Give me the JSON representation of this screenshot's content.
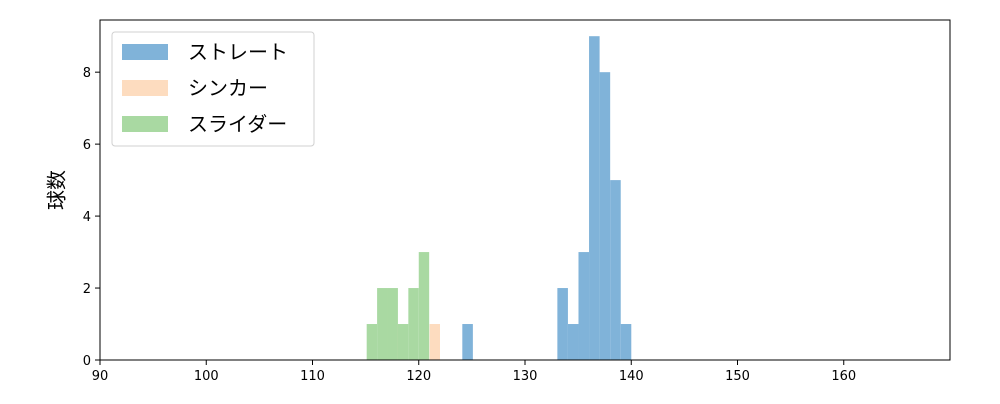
{
  "chart_data": {
    "type": "histogram",
    "y_label": "球数",
    "xlim": [
      90,
      170
    ],
    "xticks": [
      90,
      100,
      110,
      120,
      130,
      140,
      150,
      160
    ],
    "ylim": [
      0,
      9.45
    ],
    "yticks": [
      0,
      2,
      4,
      6,
      8
    ],
    "legend": "upper left",
    "series": [
      {
        "name": "ストレート",
        "color": "#80b3d9",
        "bins": [
          124.1,
          125.094,
          126.088,
          127.082,
          128.076,
          129.07,
          130.064,
          131.058,
          132.052,
          133.046,
          134.04,
          135.034,
          136.028,
          137.022,
          138.016,
          139.01,
          140.004
        ],
        "values": [
          1,
          0,
          0,
          0,
          0,
          0,
          0,
          0,
          0,
          2,
          1,
          3,
          9,
          8,
          5,
          1
        ]
      },
      {
        "name": "シンカー",
        "color": "#fddcbf",
        "bins": [
          117.1,
          118.08,
          119.06,
          120.04,
          121.02,
          122.0
        ],
        "values": [
          1,
          0,
          0,
          0,
          1
        ]
      },
      {
        "name": "スライダー",
        "color": "#a9d9a2",
        "bins": [
          115.1,
          116.08,
          117.06,
          118.04,
          119.02,
          120.0,
          120.98
        ],
        "values": [
          1,
          2,
          2,
          1,
          2,
          3
        ]
      }
    ]
  }
}
